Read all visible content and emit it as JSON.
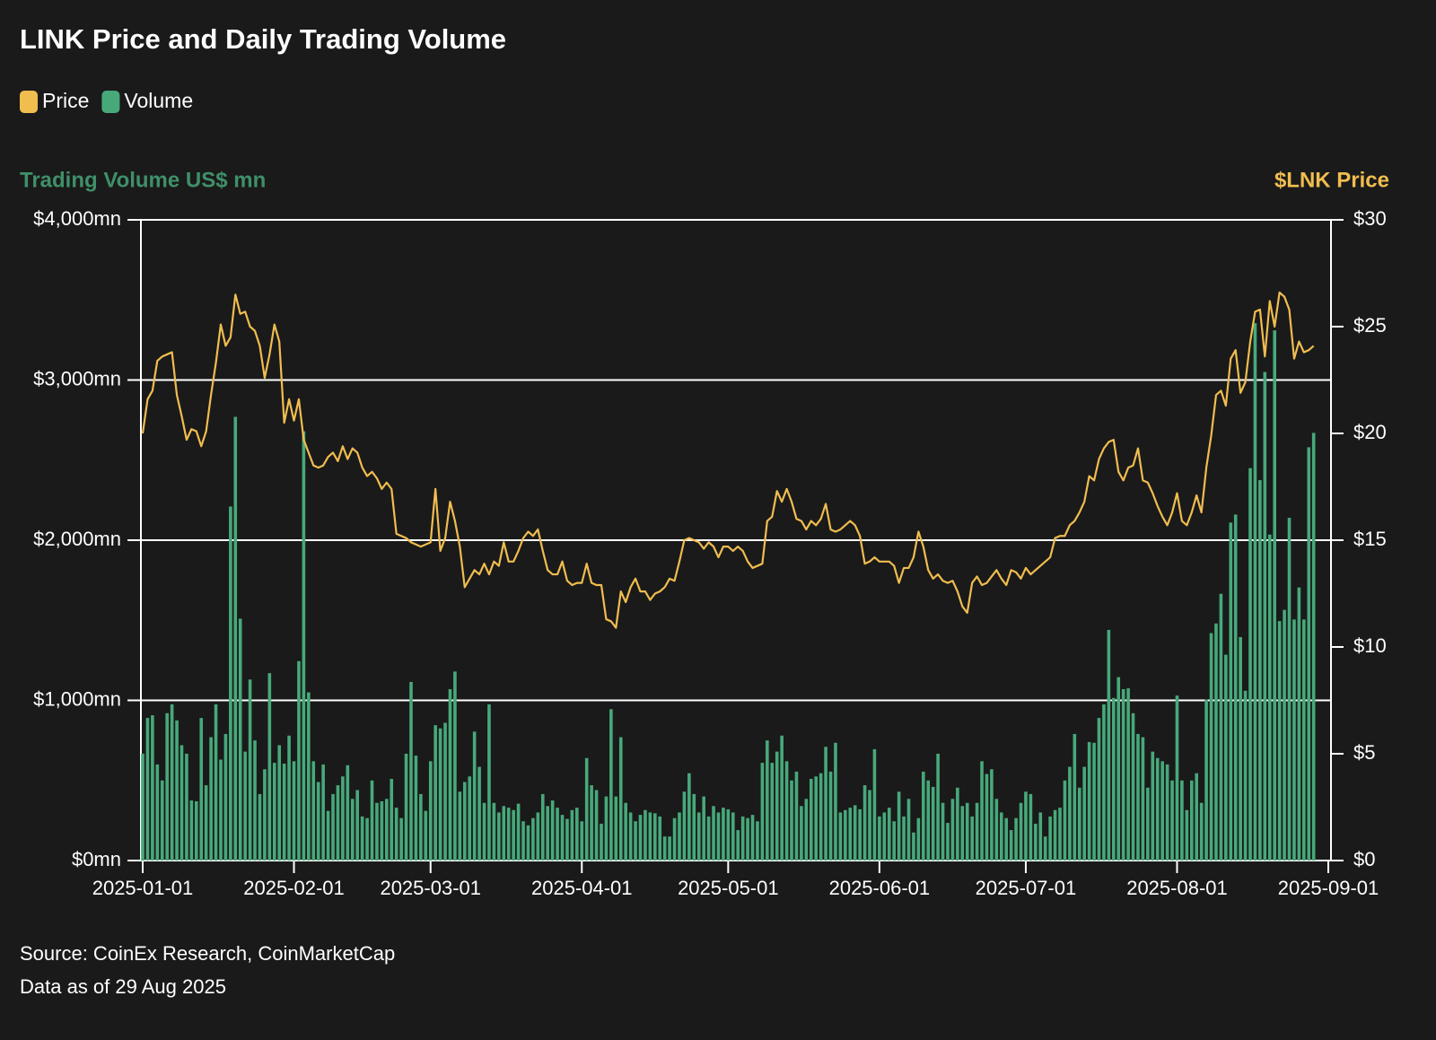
{
  "chart_data": {
    "type": "combo",
    "title": "LINK Price and Daily Trading Volume",
    "y_label": "Trading Volume US$ mn",
    "y2_label": "$LNK Price",
    "source": "Source: CoinEx Research, CoinMarketCap",
    "note": "Data as of 29 Aug 2025",
    "grid": true,
    "legend": "top-left",
    "xlim": [
      "2025-01-01",
      "2025-09-01"
    ],
    "xticks": [
      "2025-01-01",
      "2025-02-01",
      "2025-03-01",
      "2025-04-01",
      "2025-05-01",
      "2025-06-01",
      "2025-07-01",
      "2025-08-01",
      "2025-09-01"
    ],
    "ylim": [
      0,
      4000
    ],
    "yticks": [
      {
        "value": 0,
        "label": "$0mn"
      },
      {
        "value": 1000,
        "label": "$1,000mn"
      },
      {
        "value": 2000,
        "label": "$2,000mn"
      },
      {
        "value": 3000,
        "label": "$3,000mn"
      },
      {
        "value": 4000,
        "label": "$4,000mn"
      }
    ],
    "y2lim": [
      0,
      30
    ],
    "y2ticks": [
      {
        "value": 0,
        "label": "$0"
      },
      {
        "value": 5,
        "label": "$5"
      },
      {
        "value": 10,
        "label": "$10"
      },
      {
        "value": 15,
        "label": "$15"
      },
      {
        "value": 20,
        "label": "$20"
      },
      {
        "value": 25,
        "label": "$25"
      },
      {
        "value": 30,
        "label": "$30"
      }
    ],
    "x": [
      "2025-01-01",
      "2025-01-02",
      "2025-01-03",
      "2025-01-04",
      "2025-01-05",
      "2025-01-06",
      "2025-01-07",
      "2025-01-08",
      "2025-01-09",
      "2025-01-10",
      "2025-01-11",
      "2025-01-12",
      "2025-01-13",
      "2025-01-14",
      "2025-01-15",
      "2025-01-16",
      "2025-01-17",
      "2025-01-18",
      "2025-01-19",
      "2025-01-20",
      "2025-01-21",
      "2025-01-22",
      "2025-01-23",
      "2025-01-24",
      "2025-01-25",
      "2025-01-26",
      "2025-01-27",
      "2025-01-28",
      "2025-01-29",
      "2025-01-30",
      "2025-01-31",
      "2025-02-01",
      "2025-02-02",
      "2025-02-03",
      "2025-02-04",
      "2025-02-05",
      "2025-02-06",
      "2025-02-07",
      "2025-02-08",
      "2025-02-09",
      "2025-02-10",
      "2025-02-11",
      "2025-02-12",
      "2025-02-13",
      "2025-02-14",
      "2025-02-15",
      "2025-02-16",
      "2025-02-17",
      "2025-02-18",
      "2025-02-19",
      "2025-02-20",
      "2025-02-21",
      "2025-02-22",
      "2025-02-23",
      "2025-02-24",
      "2025-02-25",
      "2025-02-26",
      "2025-02-27",
      "2025-02-28",
      "2025-03-01",
      "2025-03-02",
      "2025-03-03",
      "2025-03-04",
      "2025-03-05",
      "2025-03-06",
      "2025-03-07",
      "2025-03-08",
      "2025-03-09",
      "2025-03-10",
      "2025-03-11",
      "2025-03-12",
      "2025-03-13",
      "2025-03-14",
      "2025-03-15",
      "2025-03-16",
      "2025-03-17",
      "2025-03-18",
      "2025-03-19",
      "2025-03-20",
      "2025-03-21",
      "2025-03-22",
      "2025-03-23",
      "2025-03-24",
      "2025-03-25",
      "2025-03-26",
      "2025-03-27",
      "2025-03-28",
      "2025-03-29",
      "2025-03-30",
      "2025-03-31",
      "2025-04-01",
      "2025-04-02",
      "2025-04-03",
      "2025-04-04",
      "2025-04-05",
      "2025-04-06",
      "2025-04-07",
      "2025-04-08",
      "2025-04-09",
      "2025-04-10",
      "2025-04-11",
      "2025-04-12",
      "2025-04-13",
      "2025-04-14",
      "2025-04-15",
      "2025-04-16",
      "2025-04-17",
      "2025-04-18",
      "2025-04-19",
      "2025-04-20",
      "2025-04-21",
      "2025-04-22",
      "2025-04-23",
      "2025-04-24",
      "2025-04-25",
      "2025-04-26",
      "2025-04-27",
      "2025-04-28",
      "2025-04-29",
      "2025-04-30",
      "2025-05-01",
      "2025-05-02",
      "2025-05-03",
      "2025-05-04",
      "2025-05-05",
      "2025-05-06",
      "2025-05-07",
      "2025-05-08",
      "2025-05-09",
      "2025-05-10",
      "2025-05-11",
      "2025-05-12",
      "2025-05-13",
      "2025-05-14",
      "2025-05-15",
      "2025-05-16",
      "2025-05-17",
      "2025-05-18",
      "2025-05-19",
      "2025-05-20",
      "2025-05-21",
      "2025-05-22",
      "2025-05-23",
      "2025-05-24",
      "2025-05-25",
      "2025-05-26",
      "2025-05-27",
      "2025-05-28",
      "2025-05-29",
      "2025-05-30",
      "2025-05-31",
      "2025-06-01",
      "2025-06-02",
      "2025-06-03",
      "2025-06-04",
      "2025-06-05",
      "2025-06-06",
      "2025-06-07",
      "2025-06-08",
      "2025-06-09",
      "2025-06-10",
      "2025-06-11",
      "2025-06-12",
      "2025-06-13",
      "2025-06-14",
      "2025-06-15",
      "2025-06-16",
      "2025-06-17",
      "2025-06-18",
      "2025-06-19",
      "2025-06-20",
      "2025-06-21",
      "2025-06-22",
      "2025-06-23",
      "2025-06-24",
      "2025-06-25",
      "2025-06-26",
      "2025-06-27",
      "2025-06-28",
      "2025-06-29",
      "2025-06-30",
      "2025-07-01",
      "2025-07-02",
      "2025-07-03",
      "2025-07-04",
      "2025-07-05",
      "2025-07-06",
      "2025-07-07",
      "2025-07-08",
      "2025-07-09",
      "2025-07-10",
      "2025-07-11",
      "2025-07-12",
      "2025-07-13",
      "2025-07-14",
      "2025-07-15",
      "2025-07-16",
      "2025-07-17",
      "2025-07-18",
      "2025-07-19",
      "2025-07-20",
      "2025-07-21",
      "2025-07-22",
      "2025-07-23",
      "2025-07-24",
      "2025-07-25",
      "2025-07-26",
      "2025-07-27",
      "2025-07-28",
      "2025-07-29",
      "2025-07-30",
      "2025-07-31",
      "2025-08-01",
      "2025-08-02",
      "2025-08-03",
      "2025-08-04",
      "2025-08-05",
      "2025-08-06",
      "2025-08-07",
      "2025-08-08",
      "2025-08-09",
      "2025-08-10",
      "2025-08-11",
      "2025-08-12",
      "2025-08-13",
      "2025-08-14",
      "2025-08-15",
      "2025-08-16",
      "2025-08-17",
      "2025-08-18",
      "2025-08-19",
      "2025-08-20",
      "2025-08-21",
      "2025-08-22",
      "2025-08-23",
      "2025-08-24",
      "2025-08-25",
      "2025-08-26",
      "2025-08-27",
      "2025-08-28",
      "2025-08-29"
    ],
    "series": [
      {
        "name": "Price",
        "type": "line",
        "axis": "y2",
        "color": "#f0bd4f",
        "values": [
          20.0,
          21.6,
          22.0,
          23.4,
          23.6,
          23.7,
          23.8,
          21.8,
          20.8,
          19.7,
          20.2,
          20.1,
          19.4,
          20.1,
          21.8,
          23.3,
          25.1,
          24.1,
          24.5,
          26.5,
          25.6,
          25.7,
          25.0,
          24.8,
          24.1,
          22.6,
          23.7,
          25.1,
          24.3,
          20.5,
          21.6,
          20.6,
          21.6,
          19.7,
          19.1,
          18.5,
          18.4,
          18.5,
          18.9,
          19.1,
          18.7,
          19.4,
          18.8,
          19.3,
          19.1,
          18.4,
          18.0,
          18.2,
          17.9,
          17.4,
          17.7,
          17.4,
          15.3,
          15.2,
          15.1,
          14.9,
          14.8,
          14.7,
          14.8,
          14.9,
          17.4,
          14.5,
          15.1,
          16.8,
          15.9,
          14.7,
          12.8,
          13.2,
          13.6,
          13.4,
          13.9,
          13.4,
          14.0,
          13.8,
          14.9,
          14.0,
          14.0,
          14.5,
          15.1,
          15.4,
          15.2,
          15.5,
          14.5,
          13.6,
          13.4,
          13.4,
          14.0,
          13.1,
          12.9,
          13.0,
          13.0,
          13.9,
          13.0,
          12.9,
          12.9,
          11.3,
          11.2,
          10.9,
          12.6,
          12.1,
          12.8,
          13.2,
          12.6,
          12.6,
          12.2,
          12.5,
          12.6,
          12.8,
          13.2,
          13.1,
          14.0,
          15.0,
          15.1,
          15.0,
          14.9,
          14.6,
          14.9,
          14.7,
          14.2,
          14.7,
          14.7,
          14.5,
          14.7,
          14.5,
          14.0,
          13.7,
          13.8,
          13.9,
          15.9,
          16.1,
          17.3,
          16.8,
          17.4,
          16.8,
          16.0,
          15.9,
          15.5,
          15.9,
          15.7,
          16.0,
          16.7,
          15.5,
          15.4,
          15.5,
          15.7,
          15.9,
          15.7,
          15.2,
          13.9,
          14.0,
          14.2,
          14.0,
          14.0,
          14.0,
          13.8,
          13.0,
          13.7,
          13.7,
          14.2,
          15.4,
          14.7,
          13.6,
          13.2,
          13.4,
          13.1,
          13.0,
          13.1,
          12.6,
          11.9,
          11.6,
          13.0,
          13.3,
          12.9,
          13.0,
          13.3,
          13.6,
          13.2,
          12.9,
          13.6,
          13.5,
          13.2,
          13.7,
          13.4,
          13.6,
          13.8,
          14.0,
          14.2,
          15.1,
          15.2,
          15.2,
          15.7,
          15.9,
          16.3,
          16.8,
          18.0,
          17.8,
          18.8,
          19.3,
          19.6,
          19.7,
          18.2,
          17.8,
          18.4,
          18.5,
          19.3,
          17.8,
          17.7,
          17.2,
          16.6,
          16.1,
          15.7,
          16.3,
          17.2,
          15.9,
          15.7,
          16.3,
          17.1,
          16.3,
          18.4,
          19.9,
          21.8,
          22.0,
          21.3,
          23.5,
          23.9,
          21.9,
          22.4,
          24.3,
          25.7,
          25.8,
          23.6,
          26.2,
          25.0,
          26.6,
          26.4,
          25.8,
          23.5,
          24.3,
          23.8,
          23.9,
          24.1
        ]
      },
      {
        "name": "Volume",
        "type": "bar",
        "color": "#47a97a",
        "values": [
          667,
          890,
          907,
          600,
          500,
          920,
          975,
          875,
          720,
          667,
          375,
          370,
          890,
          470,
          770,
          975,
          630,
          790,
          2210,
          2770,
          1510,
          680,
          1130,
          750,
          415,
          570,
          1170,
          610,
          720,
          605,
          780,
          620,
          1245,
          2680,
          1050,
          620,
          490,
          600,
          310,
          415,
          470,
          525,
          595,
          385,
          440,
          275,
          265,
          500,
          360,
          370,
          385,
          510,
          330,
          265,
          667,
          1115,
          655,
          415,
          310,
          620,
          845,
          825,
          860,
          1070,
          1180,
          430,
          490,
          525,
          805,
          585,
          360,
          975,
          360,
          300,
          340,
          330,
          315,
          355,
          245,
          220,
          265,
          300,
          415,
          340,
          375,
          330,
          285,
          260,
          315,
          330,
          245,
          640,
          470,
          440,
          230,
          400,
          945,
          400,
          770,
          360,
          300,
          245,
          285,
          315,
          300,
          295,
          275,
          150,
          150,
          265,
          300,
          430,
          545,
          415,
          300,
          400,
          275,
          340,
          300,
          330,
          320,
          300,
          190,
          275,
          265,
          285,
          245,
          610,
          750,
          610,
          680,
          780,
          620,
          500,
          555,
          340,
          385,
          510,
          525,
          545,
          710,
          555,
          735,
          300,
          315,
          330,
          345,
          320,
          470,
          440,
          695,
          275,
          300,
          330,
          245,
          430,
          275,
          385,
          175,
          265,
          555,
          500,
          460,
          667,
          360,
          235,
          385,
          455,
          340,
          360,
          275,
          360,
          620,
          540,
          570,
          385,
          300,
          265,
          190,
          265,
          360,
          430,
          415,
          230,
          300,
          150,
          275,
          315,
          330,
          500,
          585,
          790,
          455,
          585,
          740,
          735,
          890,
          975,
          1440,
          1015,
          1145,
          1070,
          1075,
          920,
          790,
          770,
          455,
          680,
          640,
          620,
          600,
          500,
          1030,
          500,
          315,
          500,
          545,
          360,
          1005,
          1420,
          1480,
          1665,
          1285,
          2110,
          2160,
          1395,
          1060,
          2450,
          3355,
          2375,
          3050,
          2035,
          3310,
          1495,
          1565,
          2140,
          1505,
          1705,
          1505,
          2580,
          2670
        ]
      }
    ]
  }
}
